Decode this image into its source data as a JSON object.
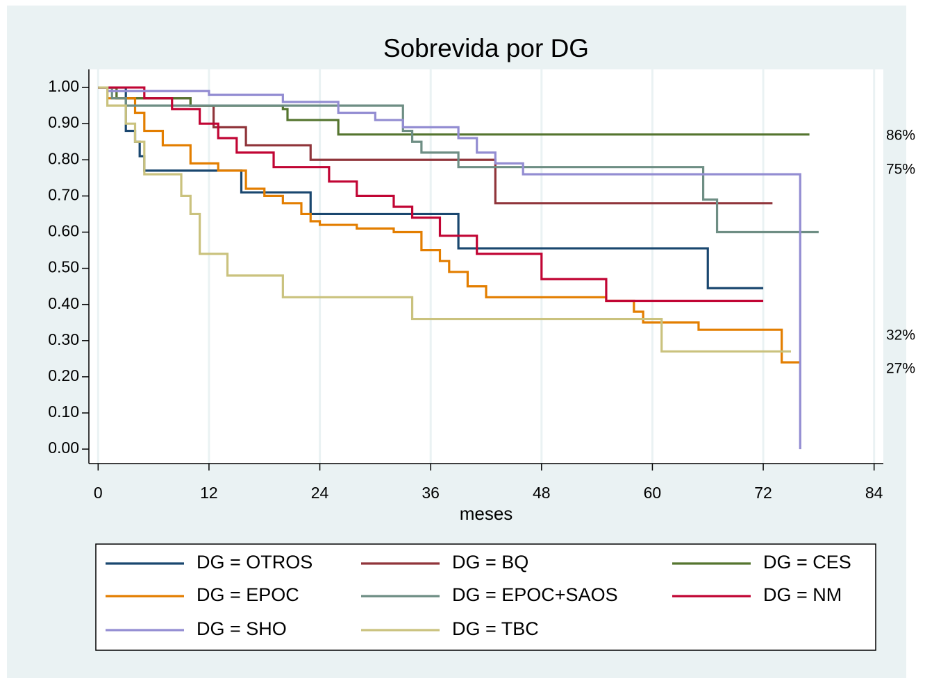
{
  "chart_data": {
    "type": "step",
    "title": "Sobrevida por DG",
    "x_label": "meses",
    "xlim": [
      -1,
      85
    ],
    "ylim": [
      -0.04,
      1.05
    ],
    "xticks": [
      0,
      12,
      24,
      36,
      48,
      60,
      72,
      84
    ],
    "yticks": [
      {
        "value": 0,
        "label": "0.00"
      },
      {
        "value": 0.1,
        "label": "0.10"
      },
      {
        "value": 0.2,
        "label": "0.20"
      },
      {
        "value": 0.3,
        "label": "0.30"
      },
      {
        "value": 0.4,
        "label": "0.40"
      },
      {
        "value": 0.5,
        "label": "0.50"
      },
      {
        "value": 0.6,
        "label": "0.60"
      },
      {
        "value": 0.7,
        "label": "0.70"
      },
      {
        "value": 0.8,
        "label": "0.80"
      },
      {
        "value": 0.9,
        "label": "0.90"
      },
      {
        "value": 1,
        "label": "1.00"
      }
    ],
    "xgrid": true,
    "annotations": [
      "86%",
      "75%",
      "32%",
      "27%"
    ],
    "series": [
      {
        "name": "DG = OTROS",
        "color": "#1a476f",
        "x": [
          0,
          3,
          4,
          4.5,
          5,
          15.5,
          23,
          39,
          66,
          72
        ],
        "values": [
          1,
          0.88,
          0.85,
          0.81,
          0.77,
          0.71,
          0.65,
          0.555,
          0.445,
          0.445
        ]
      },
      {
        "name": "DG = BQ",
        "color": "#90353b",
        "x": [
          0,
          2,
          10,
          12.5,
          16,
          23,
          43,
          73
        ],
        "values": [
          1,
          0.97,
          0.95,
          0.89,
          0.84,
          0.8,
          0.68,
          0.68
        ]
      },
      {
        "name": "DG = CES",
        "color": "#55752f",
        "x": [
          0,
          2,
          10,
          20,
          20.5,
          26,
          77
        ],
        "values": [
          1,
          0.97,
          0.95,
          0.94,
          0.91,
          0.87,
          0.87
        ]
      },
      {
        "name": "DG = EPOC",
        "color": "#e37e00",
        "x": [
          0,
          1,
          4,
          5,
          7,
          10,
          13,
          16,
          18,
          20,
          22,
          23,
          24,
          28,
          32,
          35,
          37,
          38,
          40,
          42,
          55,
          58,
          59,
          65,
          74,
          76
        ],
        "values": [
          1,
          0.97,
          0.93,
          0.88,
          0.84,
          0.79,
          0.77,
          0.72,
          0.7,
          0.68,
          0.65,
          0.63,
          0.62,
          0.61,
          0.6,
          0.55,
          0.52,
          0.49,
          0.45,
          0.42,
          0.41,
          0.38,
          0.35,
          0.33,
          0.24,
          0.24
        ]
      },
      {
        "name": "DG = EPOC+SAOS",
        "color": "#6e8e84",
        "x": [
          0,
          1.5,
          3,
          33,
          34,
          35,
          39,
          65.5,
          67,
          78
        ],
        "values": [
          1,
          0.97,
          0.95,
          0.88,
          0.85,
          0.82,
          0.78,
          0.69,
          0.6,
          0.6
        ]
      },
      {
        "name": "DG = NM",
        "color": "#c10534",
        "x": [
          0,
          5,
          8,
          11,
          13,
          15,
          19,
          25,
          28,
          32,
          34,
          37,
          41,
          48,
          55,
          72
        ],
        "values": [
          1,
          0.97,
          0.94,
          0.9,
          0.86,
          0.82,
          0.78,
          0.74,
          0.7,
          0.67,
          0.64,
          0.59,
          0.54,
          0.47,
          0.41,
          0.41
        ]
      },
      {
        "name": "DG = SHO",
        "color": "#938dd2",
        "x": [
          0,
          1,
          12,
          20,
          26,
          30,
          33,
          39,
          41,
          43,
          46,
          76
        ],
        "values": [
          1,
          0.99,
          0.98,
          0.96,
          0.93,
          0.91,
          0.89,
          0.86,
          0.82,
          0.79,
          0.76,
          0
        ]
      },
      {
        "name": "DG = TBC",
        "color": "#cac27e",
        "x": [
          0,
          1,
          3,
          4,
          5,
          9,
          10,
          11,
          14,
          20,
          34,
          61,
          75
        ],
        "values": [
          1,
          0.95,
          0.9,
          0.85,
          0.76,
          0.7,
          0.65,
          0.54,
          0.48,
          0.42,
          0.36,
          0.27,
          0.27
        ]
      }
    ]
  }
}
